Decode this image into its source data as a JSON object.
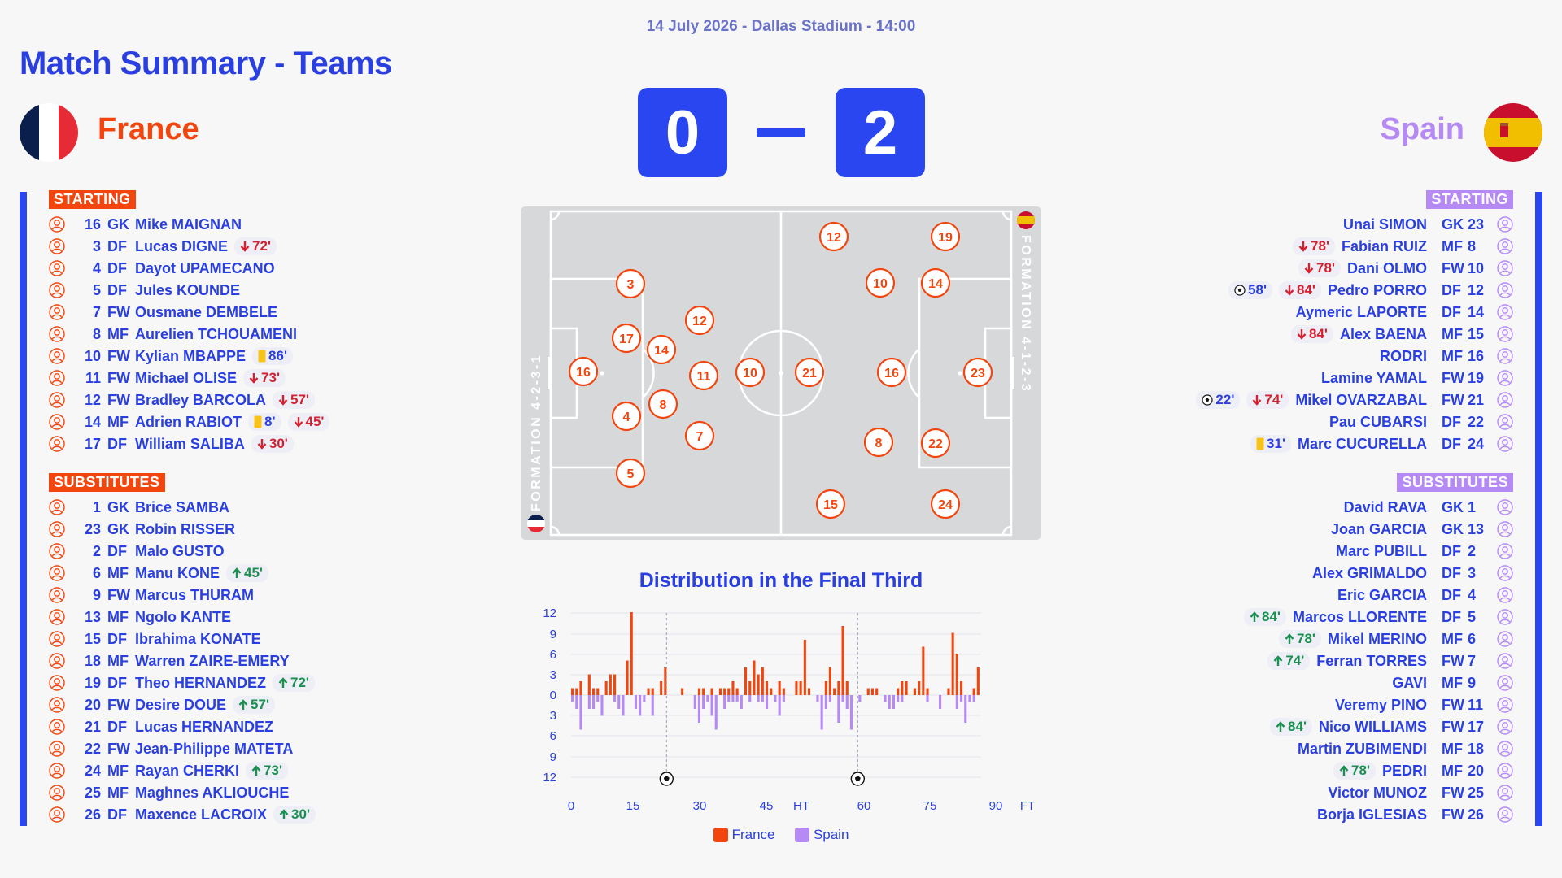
{
  "match_info": "14 July 2026 - Dallas Stadium - 14:00",
  "page_title": "Match Summary - Teams",
  "home": {
    "name": "France",
    "score": "0",
    "formation": "FORMATION 4-2-3-1",
    "starting_label": "STARTING",
    "subs_label": "SUBSTITUTES",
    "starting": [
      {
        "num": "16",
        "pos": "GK",
        "name": "Mike MAIGNAN",
        "events": []
      },
      {
        "num": "3",
        "pos": "DF",
        "name": "Lucas DIGNE",
        "events": [
          {
            "type": "out",
            "text": "72'"
          }
        ]
      },
      {
        "num": "4",
        "pos": "DF",
        "name": "Dayot UPAMECANO",
        "events": []
      },
      {
        "num": "5",
        "pos": "DF",
        "name": "Jules KOUNDE",
        "events": []
      },
      {
        "num": "7",
        "pos": "FW",
        "name": "Ousmane DEMBELE",
        "events": []
      },
      {
        "num": "8",
        "pos": "MF",
        "name": "Aurelien TCHOUAMENI",
        "events": []
      },
      {
        "num": "10",
        "pos": "FW",
        "name": "Kylian MBAPPE",
        "events": [
          {
            "type": "yellow",
            "text": "86'"
          }
        ]
      },
      {
        "num": "11",
        "pos": "FW",
        "name": "Michael OLISE",
        "events": [
          {
            "type": "out",
            "text": "73'"
          }
        ]
      },
      {
        "num": "12",
        "pos": "FW",
        "name": "Bradley BARCOLA",
        "events": [
          {
            "type": "out",
            "text": "57'"
          }
        ]
      },
      {
        "num": "14",
        "pos": "MF",
        "name": "Adrien RABIOT",
        "events": [
          {
            "type": "yellow",
            "text": "8'"
          },
          {
            "type": "out",
            "text": "45'"
          }
        ]
      },
      {
        "num": "17",
        "pos": "DF",
        "name": "William SALIBA",
        "events": [
          {
            "type": "out",
            "text": "30'"
          }
        ]
      }
    ],
    "subs": [
      {
        "num": "1",
        "pos": "GK",
        "name": "Brice SAMBA",
        "events": []
      },
      {
        "num": "23",
        "pos": "GK",
        "name": "Robin RISSER",
        "events": []
      },
      {
        "num": "2",
        "pos": "DF",
        "name": "Malo GUSTO",
        "events": []
      },
      {
        "num": "6",
        "pos": "MF",
        "name": "Manu KONE",
        "events": [
          {
            "type": "in",
            "text": "45'"
          }
        ]
      },
      {
        "num": "9",
        "pos": "FW",
        "name": "Marcus THURAM",
        "events": []
      },
      {
        "num": "13",
        "pos": "MF",
        "name": "Ngolo KANTE",
        "events": []
      },
      {
        "num": "15",
        "pos": "DF",
        "name": "Ibrahima KONATE",
        "events": []
      },
      {
        "num": "18",
        "pos": "MF",
        "name": "Warren ZAIRE-EMERY",
        "events": []
      },
      {
        "num": "19",
        "pos": "DF",
        "name": "Theo HERNANDEZ",
        "events": [
          {
            "type": "in",
            "text": "72'"
          }
        ]
      },
      {
        "num": "20",
        "pos": "FW",
        "name": "Desire DOUE",
        "events": [
          {
            "type": "in",
            "text": "57'"
          }
        ]
      },
      {
        "num": "21",
        "pos": "DF",
        "name": "Lucas HERNANDEZ",
        "events": []
      },
      {
        "num": "22",
        "pos": "FW",
        "name": "Jean-Philippe MATETA",
        "events": []
      },
      {
        "num": "24",
        "pos": "MF",
        "name": "Rayan CHERKI",
        "events": [
          {
            "type": "in",
            "text": "73'"
          }
        ]
      },
      {
        "num": "25",
        "pos": "MF",
        "name": "Maghnes AKLIOUCHE",
        "events": []
      },
      {
        "num": "26",
        "pos": "DF",
        "name": "Maxence LACROIX",
        "events": [
          {
            "type": "in",
            "text": "30'"
          }
        ]
      }
    ],
    "pitch_players": [
      "16",
      "3",
      "17",
      "4",
      "5",
      "12",
      "14",
      "8",
      "11",
      "7",
      "10"
    ]
  },
  "away": {
    "name": "Spain",
    "score": "2",
    "formation": "FORMATION 4-1-2-3",
    "starting_label": "STARTING",
    "subs_label": "SUBSTITUTES",
    "starting": [
      {
        "num": "23",
        "pos": "GK",
        "name": "Unai SIMON",
        "events": []
      },
      {
        "num": "8",
        "pos": "MF",
        "name": "Fabian RUIZ",
        "events": [
          {
            "type": "out",
            "text": "78'"
          }
        ]
      },
      {
        "num": "10",
        "pos": "FW",
        "name": "Dani OLMO",
        "events": [
          {
            "type": "out",
            "text": "78'"
          }
        ]
      },
      {
        "num": "12",
        "pos": "DF",
        "name": "Pedro PORRO",
        "events": [
          {
            "type": "out",
            "text": "84'"
          },
          {
            "type": "goal",
            "text": "58'"
          }
        ]
      },
      {
        "num": "14",
        "pos": "DF",
        "name": "Aymeric LAPORTE",
        "events": []
      },
      {
        "num": "15",
        "pos": "MF",
        "name": "Alex BAENA",
        "events": [
          {
            "type": "out",
            "text": "84'"
          }
        ]
      },
      {
        "num": "16",
        "pos": "MF",
        "name": "RODRI",
        "events": []
      },
      {
        "num": "19",
        "pos": "FW",
        "name": "Lamine YAMAL",
        "events": []
      },
      {
        "num": "21",
        "pos": "FW",
        "name": "Mikel OVARZABAL",
        "events": [
          {
            "type": "out",
            "text": "74'"
          },
          {
            "type": "goal",
            "text": "22'"
          }
        ]
      },
      {
        "num": "22",
        "pos": "DF",
        "name": "Pau CUBARSI",
        "events": []
      },
      {
        "num": "24",
        "pos": "DF",
        "name": "Marc CUCURELLA",
        "events": [
          {
            "type": "yellow",
            "text": "31'"
          }
        ]
      }
    ],
    "subs": [
      {
        "num": "1",
        "pos": "GK",
        "name": "David RAVA",
        "events": []
      },
      {
        "num": "13",
        "pos": "GK",
        "name": "Joan GARCIA",
        "events": []
      },
      {
        "num": "2",
        "pos": "DF",
        "name": "Marc PUBILL",
        "events": []
      },
      {
        "num": "3",
        "pos": "DF",
        "name": "Alex GRIMALDO",
        "events": []
      },
      {
        "num": "4",
        "pos": "DF",
        "name": "Eric GARCIA",
        "events": []
      },
      {
        "num": "5",
        "pos": "DF",
        "name": "Marcos LLORENTE",
        "events": [
          {
            "type": "in",
            "text": "84'"
          }
        ]
      },
      {
        "num": "6",
        "pos": "MF",
        "name": "Mikel MERINO",
        "events": [
          {
            "type": "in",
            "text": "78'"
          }
        ]
      },
      {
        "num": "7",
        "pos": "FW",
        "name": "Ferran TORRES",
        "events": [
          {
            "type": "in",
            "text": "74'"
          }
        ]
      },
      {
        "num": "9",
        "pos": "MF",
        "name": "GAVI",
        "events": []
      },
      {
        "num": "11",
        "pos": "FW",
        "name": "Veremy PINO",
        "events": []
      },
      {
        "num": "17",
        "pos": "FW",
        "name": "Nico WILLIAMS",
        "events": [
          {
            "type": "in",
            "text": "84'"
          }
        ]
      },
      {
        "num": "18",
        "pos": "MF",
        "name": "Martin ZUBIMENDI",
        "events": []
      },
      {
        "num": "20",
        "pos": "MF",
        "name": "PEDRI",
        "events": [
          {
            "type": "in",
            "text": "78'"
          }
        ]
      },
      {
        "num": "25",
        "pos": "FW",
        "name": "Victor MUNOZ",
        "events": []
      },
      {
        "num": "26",
        "pos": "FW",
        "name": "Borja IGLESIAS",
        "events": []
      }
    ],
    "pitch_players": [
      "23",
      "16",
      "14",
      "22",
      "10",
      "8",
      "21",
      "12",
      "19",
      "15",
      "24"
    ]
  },
  "colors": {
    "home": "#f2460e",
    "away": "#b58af4",
    "primary": "#2a3fe0",
    "score_bg": "#2a46f0"
  },
  "chart_data": {
    "type": "bar",
    "title": "Distribution in the Final Third",
    "x_ticks": [
      "0",
      "15",
      "30",
      "45",
      "HT",
      "60",
      "75",
      "90",
      "FT"
    ],
    "y_ticks": [
      "12",
      "9",
      "6",
      "3",
      "0",
      "3",
      "6",
      "9",
      "12"
    ],
    "ylim": [
      -12,
      12
    ],
    "legend": [
      "France",
      "Spain"
    ],
    "legend_position": "bottom",
    "goals_minutes": [
      22,
      58
    ],
    "series": [
      {
        "name": "France",
        "color": "#f2460e",
        "values": [
          1,
          1,
          2,
          0,
          3,
          1,
          1,
          0,
          2,
          3,
          3,
          0,
          0,
          5,
          12,
          0,
          0,
          0,
          1,
          1,
          0,
          2,
          4,
          0,
          0,
          0,
          1,
          0,
          0,
          0,
          1,
          1,
          0,
          1,
          0,
          1,
          1,
          1,
          2,
          1,
          0,
          4,
          2,
          5,
          3,
          4,
          2,
          1,
          0,
          2,
          1,
          0,
          0,
          2,
          2,
          8,
          1,
          0,
          0,
          0,
          2,
          4,
          1,
          2,
          10,
          2,
          0,
          0,
          0,
          0,
          1,
          1,
          1,
          0,
          0,
          0,
          0,
          1,
          2,
          2,
          0,
          1,
          2,
          7,
          1,
          0,
          0,
          0,
          0,
          1,
          9,
          6,
          2,
          0,
          0,
          1,
          4
        ]
      },
      {
        "name": "Spain",
        "color": "#b58af4",
        "values": [
          1,
          2,
          5,
          0,
          2,
          2,
          1,
          3,
          0,
          0,
          1,
          2,
          3,
          0,
          0,
          2,
          3,
          1,
          0,
          3,
          0,
          0,
          0,
          0,
          0,
          0,
          0,
          0,
          0,
          2,
          4,
          2,
          1,
          3,
          5,
          0,
          2,
          1,
          1,
          1,
          2,
          0,
          1,
          0,
          1,
          1,
          2,
          0,
          1,
          3,
          1,
          0,
          0,
          0,
          0,
          0,
          0,
          0,
          1,
          5,
          2,
          1,
          0,
          4,
          1,
          2,
          5,
          0,
          1,
          0,
          0,
          0,
          0,
          0,
          1,
          2,
          2,
          1,
          1,
          0,
          0,
          0,
          0,
          0,
          1,
          0,
          0,
          2,
          0,
          0,
          0,
          2,
          1,
          4,
          1,
          1,
          0
        ]
      }
    ]
  }
}
